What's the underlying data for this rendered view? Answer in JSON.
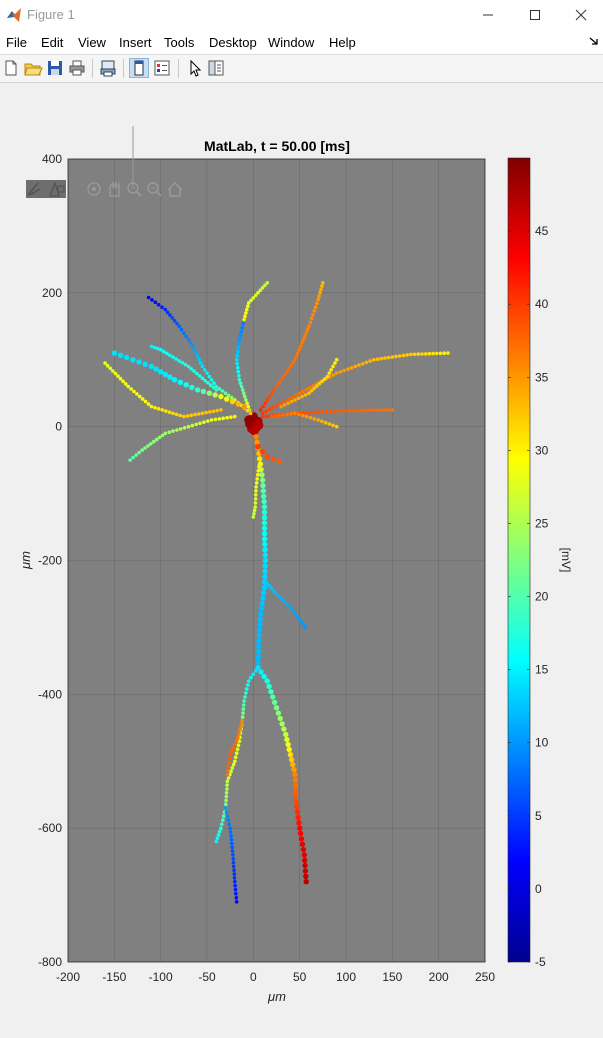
{
  "window": {
    "title": "Figure 1"
  },
  "menu": [
    "File",
    "Edit",
    "View",
    "Insert",
    "Tools",
    "Desktop",
    "Window",
    "Help"
  ],
  "toolbar_icons": [
    "new-figure-icon",
    "open-file-icon",
    "save-icon",
    "print-icon",
    "print-preview-icon",
    "dock-figure-icon",
    "toggle-legend-icon",
    "select-pointer-icon",
    "property-editor-icon"
  ],
  "axes_toolbar_icons": [
    "brush-icon",
    "data-tips-icon",
    "rotate-3d-icon",
    "pan-icon",
    "zoom-in-icon",
    "zoom-out-icon",
    "restore-view-icon"
  ],
  "colors": {
    "axes_background": "#808080",
    "figure_background": "#f0f0f0",
    "grid": "#6a6a6a"
  },
  "colormap": "jet",
  "chart_data": {
    "type": "scatter",
    "title": "MatLab, t = 50.00 [ms]",
    "xlabel": "μm",
    "ylabel": "μm",
    "xlim": [
      -200,
      250
    ],
    "ylim": [
      -800,
      400
    ],
    "xticks": [
      "-200",
      "-150",
      "-100",
      "-50",
      "0",
      "50",
      "100",
      "150",
      "200",
      "250"
    ],
    "yticks": [
      "400",
      "200",
      "0",
      "-200",
      "-400",
      "-600",
      "-800"
    ],
    "grid": true,
    "colorbar": {
      "label": "[mV]",
      "clim": [
        -5,
        50
      ],
      "ticks": [
        "45",
        "40",
        "35",
        "30",
        "25",
        "20",
        "15",
        "10",
        "5",
        "0",
        "-5"
      ]
    },
    "branches": [
      {
        "name": "soma",
        "points": [
          [
            -5,
            10
          ],
          [
            0,
            15
          ],
          [
            5,
            8
          ],
          [
            3,
            -2
          ],
          [
            -2,
            -3
          ],
          [
            -4,
            4
          ],
          [
            2,
            3
          ],
          [
            6,
            2
          ],
          [
            -1,
            12
          ],
          [
            1,
            -6
          ]
        ],
        "v": [
          49,
          49,
          48,
          48,
          47,
          49,
          48,
          47,
          49,
          47
        ],
        "size": 5
      },
      {
        "name": "axon-trunk",
        "points": [
          [
            3,
            -15
          ],
          [
            6,
            -40
          ],
          [
            10,
            -80
          ],
          [
            12,
            -120
          ],
          [
            12,
            -160
          ],
          [
            13,
            -200
          ],
          [
            12,
            -240
          ],
          [
            8,
            -280
          ],
          [
            6,
            -320
          ],
          [
            5,
            -360
          ]
        ],
        "v": [
          36,
          33,
          22,
          18,
          16,
          14,
          13,
          12,
          12,
          12
        ],
        "size": 3
      },
      {
        "name": "axon-side-branch",
        "points": [
          [
            12,
            -230
          ],
          [
            25,
            -250
          ],
          [
            40,
            -270
          ],
          [
            56,
            -300
          ]
        ],
        "v": [
          13,
          12,
          11,
          10
        ],
        "size": 2
      },
      {
        "name": "axon-short-stub",
        "points": [
          [
            6,
            -60
          ],
          [
            3,
            -90
          ],
          [
            2,
            -120
          ],
          [
            0,
            -135
          ]
        ],
        "v": [
          30,
          28,
          27,
          26
        ],
        "size": 2
      },
      {
        "name": "soma-red-stub",
        "points": [
          [
            5,
            -30
          ],
          [
            15,
            -45
          ],
          [
            28,
            -52
          ]
        ],
        "v": [
          40,
          39,
          38
        ],
        "size": 3
      },
      {
        "name": "lower-right-main",
        "points": [
          [
            5,
            -360
          ],
          [
            15,
            -380
          ],
          [
            25,
            -420
          ],
          [
            35,
            -460
          ],
          [
            40,
            -490
          ],
          [
            45,
            -520
          ],
          [
            46,
            -560
          ],
          [
            50,
            -600
          ],
          [
            55,
            -640
          ],
          [
            57,
            -680
          ]
        ],
        "v": [
          14,
          17,
          22,
          26,
          31,
          36,
          39,
          43,
          45,
          47
        ],
        "size": 3
      },
      {
        "name": "lower-left-main",
        "points": [
          [
            5,
            -360
          ],
          [
            -5,
            -380
          ],
          [
            -10,
            -410
          ],
          [
            -12,
            -440
          ],
          [
            -15,
            -470
          ],
          [
            -20,
            -500
          ],
          [
            -28,
            -530
          ],
          [
            -30,
            -570
          ],
          [
            -35,
            -600
          ],
          [
            -40,
            -620
          ]
        ],
        "v": [
          14,
          16,
          19,
          24,
          27,
          28,
          26,
          22,
          18,
          15
        ],
        "size": 2
      },
      {
        "name": "lower-left-blue-tip",
        "points": [
          [
            -30,
            -570
          ],
          [
            -25,
            -600
          ],
          [
            -22,
            -640
          ],
          [
            -20,
            -680
          ],
          [
            -18,
            -710
          ]
        ],
        "v": [
          10,
          8,
          6,
          4,
          2
        ],
        "size": 2
      },
      {
        "name": "lower-left-orange-side",
        "points": [
          [
            -12,
            -440
          ],
          [
            -18,
            -470
          ],
          [
            -25,
            -490
          ],
          [
            -28,
            -520
          ]
        ],
        "v": [
          36,
          37,
          38,
          37
        ],
        "size": 2
      },
      {
        "name": "apical-up-left",
        "points": [
          [
            -3,
            20
          ],
          [
            -8,
            40
          ],
          [
            -15,
            70
          ],
          [
            -18,
            100
          ],
          [
            -15,
            130
          ],
          [
            -10,
            160
          ]
        ],
        "v": [
          35,
          24,
          18,
          14,
          10,
          8
        ],
        "size": 2
      },
      {
        "name": "apical-up-top",
        "points": [
          [
            -10,
            160
          ],
          [
            -5,
            185
          ],
          [
            5,
            200
          ],
          [
            15,
            215
          ]
        ],
        "v": [
          30,
          28,
          27,
          26
        ],
        "size": 2
      },
      {
        "name": "left-blue-branch",
        "points": [
          [
            -3,
            20
          ],
          [
            -20,
            40
          ],
          [
            -40,
            60
          ],
          [
            -55,
            90
          ],
          [
            -65,
            120
          ],
          [
            -80,
            150
          ],
          [
            -95,
            175
          ],
          [
            -113,
            193
          ]
        ],
        "v": [
          33,
          25,
          17,
          14,
          10,
          7,
          4,
          1
        ],
        "size": 2
      },
      {
        "name": "left-cyan-branch",
        "points": [
          [
            -10,
            30
          ],
          [
            -35,
            45
          ],
          [
            -60,
            55
          ],
          [
            -85,
            70
          ],
          [
            -110,
            90
          ],
          [
            -130,
            100
          ],
          [
            -150,
            110
          ]
        ],
        "v": [
          35,
          28,
          18,
          15,
          14,
          14,
          14
        ],
        "size": 3
      },
      {
        "name": "left-green-branch",
        "points": [
          [
            -20,
            15
          ],
          [
            -45,
            10
          ],
          [
            -70,
            0
          ],
          [
            -95,
            -10
          ],
          [
            -120,
            -35
          ],
          [
            -133,
            -50
          ]
        ],
        "v": [
          30,
          28,
          26,
          24,
          22,
          20
        ],
        "size": 2
      },
      {
        "name": "left-yellow-branch",
        "points": [
          [
            -35,
            25
          ],
          [
            -75,
            15
          ],
          [
            -110,
            30
          ],
          [
            -135,
            60
          ],
          [
            -160,
            95
          ]
        ],
        "v": [
          33,
          32,
          30,
          29,
          28
        ],
        "size": 2
      },
      {
        "name": "left-mid-cyan",
        "points": [
          [
            -40,
            55
          ],
          [
            -70,
            90
          ],
          [
            -100,
            115
          ],
          [
            -110,
            120
          ]
        ],
        "v": [
          18,
          17,
          16,
          15
        ],
        "size": 2
      },
      {
        "name": "right-orange-up",
        "points": [
          [
            8,
            25
          ],
          [
            25,
            60
          ],
          [
            45,
            100
          ],
          [
            60,
            150
          ],
          [
            70,
            190
          ],
          [
            75,
            215
          ]
        ],
        "v": [
          41,
          38,
          37,
          36,
          35,
          33
        ],
        "size": 2
      },
      {
        "name": "right-yellow",
        "points": [
          [
            10,
            20
          ],
          [
            50,
            50
          ],
          [
            90,
            80
          ],
          [
            130,
            100
          ],
          [
            170,
            108
          ],
          [
            210,
            110
          ]
        ],
        "v": [
          40,
          37,
          35,
          33,
          32,
          30
        ],
        "size": 2
      },
      {
        "name": "right-orange-flat",
        "points": [
          [
            10,
            15
          ],
          [
            50,
            20
          ],
          [
            100,
            24
          ],
          [
            150,
            25
          ]
        ],
        "v": [
          40,
          39,
          38,
          37
        ],
        "size": 2
      },
      {
        "name": "right-yellow-loop",
        "points": [
          [
            30,
            30
          ],
          [
            60,
            50
          ],
          [
            80,
            75
          ],
          [
            90,
            100
          ]
        ],
        "v": [
          35,
          33,
          31,
          30
        ],
        "size": 2
      },
      {
        "name": "right-green-fork",
        "points": [
          [
            20,
            15
          ],
          [
            45,
            20
          ],
          [
            70,
            10
          ],
          [
            90,
            0
          ]
        ],
        "v": [
          38,
          36,
          34,
          32
        ],
        "size": 2
      }
    ]
  }
}
